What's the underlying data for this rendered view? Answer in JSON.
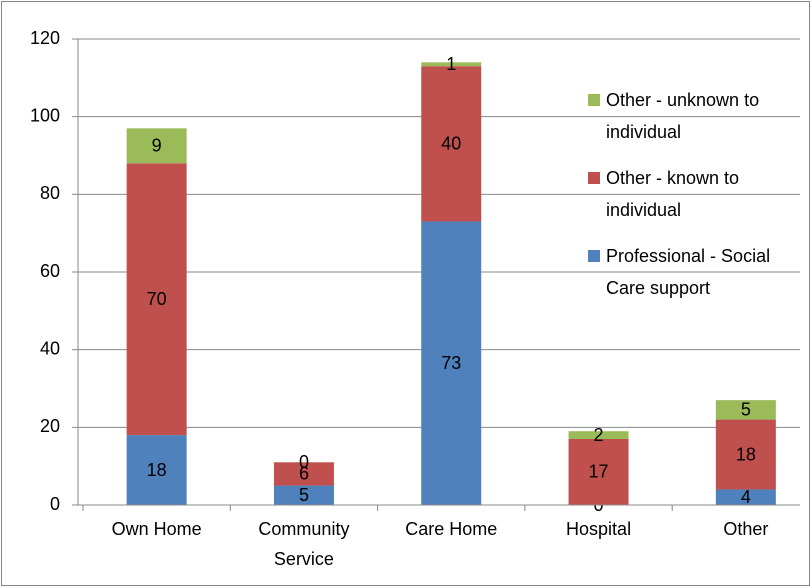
{
  "chart_data": {
    "type": "stacked-bar",
    "categories": [
      "Own Home",
      "Community Service",
      "Care Home",
      "Hospital",
      "Other"
    ],
    "series": [
      {
        "name": "Professional - Social Care support",
        "color": "#4f81bd",
        "values": [
          18,
          5,
          73,
          0,
          4
        ]
      },
      {
        "name": "Other - known to individual",
        "color": "#c0504d",
        "values": [
          70,
          6,
          40,
          17,
          18
        ]
      },
      {
        "name": "Other - unknown to individual",
        "color": "#9bbb59",
        "values": [
          9,
          0,
          1,
          2,
          5
        ]
      }
    ],
    "ylim": [
      0,
      120
    ],
    "yticks": [
      0,
      20,
      40,
      60,
      80,
      100,
      120
    ],
    "grid": true,
    "legend": "right"
  }
}
